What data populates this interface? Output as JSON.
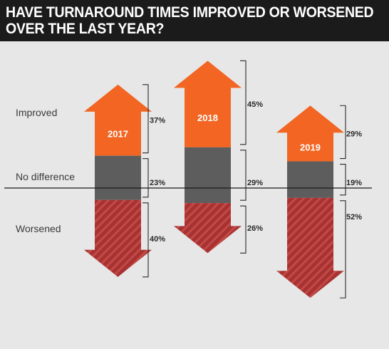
{
  "title": [
    "HAVE TURNAROUND TIMES IMPROVED OR WORSENED",
    "OVER THE LAST YEAR?"
  ],
  "colors": {
    "improved": "#f26522",
    "no_difference": "#5d5d5d",
    "worsened": "#a83232",
    "worsened_stripe": "#c24a46",
    "background": "#e7e7e7",
    "title_bg": "#1b1b1b"
  },
  "chart_data": {
    "type": "bar",
    "subtype": "diverging-stacked-arrows",
    "title": "HAVE TURNAROUND TIMES IMPROVED OR WORSENED OVER THE LAST YEAR?",
    "categories": [
      "2017",
      "2018",
      "2019"
    ],
    "series": [
      {
        "name": "Improved",
        "values": [
          37,
          45,
          29
        ]
      },
      {
        "name": "No difference",
        "values": [
          23,
          29,
          19
        ]
      },
      {
        "name": "Worsened",
        "values": [
          40,
          26,
          52
        ]
      }
    ],
    "value_labels": {
      "Improved": [
        "37%",
        "45%",
        "29%"
      ],
      "No difference": [
        "23%",
        "29%",
        "19%"
      ],
      "Worsened": [
        "40%",
        "26%",
        "52%"
      ]
    },
    "row_labels": [
      "Improved",
      "No difference",
      "Worsened"
    ],
    "unit": "%",
    "legend": "left"
  }
}
